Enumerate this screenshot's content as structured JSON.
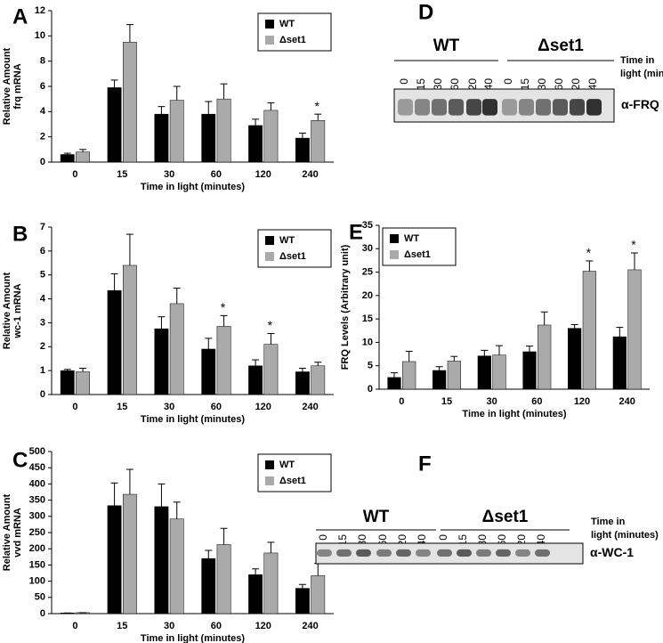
{
  "chart_data": [
    {
      "type": "bar",
      "panel": "A",
      "ylabel": [
        "Relative Amount",
        "frq mRNA"
      ],
      "xlabel": "Time in light (minutes)",
      "categories": [
        "0",
        "15",
        "30",
        "60",
        "120",
        "240"
      ],
      "ylim": [
        0,
        12
      ],
      "yticks": [
        0,
        2,
        4,
        6,
        8,
        10,
        12
      ],
      "legend": "upper right",
      "series": [
        {
          "name": "WT",
          "color": "#000000",
          "values": [
            0.6,
            5.9,
            3.8,
            3.8,
            2.9,
            1.9
          ],
          "errors": [
            0.1,
            0.6,
            0.6,
            1.0,
            0.5,
            0.4
          ]
        },
        {
          "name": "Δset1",
          "color": "#aaaaaa",
          "values": [
            0.8,
            9.5,
            4.9,
            5.0,
            4.1,
            3.3
          ],
          "errors": [
            0.2,
            1.4,
            1.1,
            1.2,
            0.6,
            0.5
          ]
        }
      ],
      "significance": [
        null,
        null,
        null,
        null,
        null,
        "*"
      ]
    },
    {
      "type": "bar",
      "panel": "B",
      "ylabel": [
        "Relative Amount",
        "wc-1 mRNA"
      ],
      "xlabel": "Time in light (minutes)",
      "categories": [
        "0",
        "15",
        "30",
        "60",
        "120",
        "240"
      ],
      "ylim": [
        0,
        7
      ],
      "yticks": [
        0,
        1,
        2,
        3,
        4,
        5,
        6,
        7
      ],
      "legend": "upper right",
      "series": [
        {
          "name": "WT",
          "color": "#000000",
          "values": [
            1.0,
            4.35,
            2.75,
            1.9,
            1.2,
            0.95
          ],
          "errors": [
            0.05,
            0.7,
            0.5,
            0.45,
            0.25,
            0.15
          ]
        },
        {
          "name": "Δset1",
          "color": "#aaaaaa",
          "values": [
            0.95,
            5.4,
            3.8,
            2.85,
            2.1,
            1.2
          ],
          "errors": [
            0.15,
            1.3,
            0.65,
            0.45,
            0.45,
            0.15
          ]
        }
      ],
      "significance": [
        null,
        null,
        null,
        "*",
        "*",
        null
      ]
    },
    {
      "type": "bar",
      "panel": "C",
      "ylabel": [
        "Relative Amount",
        "vvd mRNA"
      ],
      "xlabel": "Time in light (minutes)",
      "categories": [
        "0",
        "15",
        "30",
        "60",
        "120",
        "240"
      ],
      "ylim": [
        0,
        500
      ],
      "yticks": [
        0,
        50,
        100,
        150,
        200,
        250,
        300,
        350,
        400,
        450,
        500
      ],
      "legend": "upper right",
      "series": [
        {
          "name": "WT",
          "color": "#000000",
          "values": [
            2,
            333,
            330,
            170,
            120,
            78
          ],
          "errors": [
            0,
            70,
            70,
            25,
            18,
            12
          ]
        },
        {
          "name": "Δset1",
          "color": "#aaaaaa",
          "values": [
            3,
            368,
            292,
            213,
            187,
            117
          ],
          "errors": [
            0,
            77,
            52,
            50,
            33,
            38
          ]
        }
      ]
    },
    {
      "type": "bar",
      "panel": "E",
      "ylabel": [
        "FRQ Levels (Arbitrary unit)"
      ],
      "xlabel": "Time in light (minutes)",
      "categories": [
        "0",
        "15",
        "30",
        "60",
        "120",
        "240"
      ],
      "ylim": [
        0,
        35
      ],
      "yticks": [
        0,
        5,
        10,
        15,
        20,
        25,
        30,
        35
      ],
      "legend": "upper left",
      "series": [
        {
          "name": "WT",
          "color": "#000000",
          "values": [
            2.5,
            4.0,
            7.1,
            8.0,
            13.0,
            11.2
          ],
          "errors": [
            1.0,
            0.8,
            1.2,
            1.2,
            0.8,
            2.0
          ]
        },
        {
          "name": "Δset1",
          "color": "#aaaaaa",
          "values": [
            5.9,
            6.0,
            7.3,
            13.7,
            25.2,
            25.5
          ],
          "errors": [
            2.2,
            1.0,
            2.0,
            2.8,
            2.2,
            3.6
          ]
        }
      ],
      "significance": [
        null,
        null,
        null,
        null,
        "*",
        "*"
      ]
    }
  ],
  "blots": [
    {
      "panel": "D",
      "groups": [
        "WT",
        "Δset1"
      ],
      "lanes": [
        "0",
        "15",
        "30",
        "60",
        "120",
        "240"
      ],
      "lane_title": [
        "Time in",
        "light (minutes)"
      ],
      "antibody": "α-FRQ"
    },
    {
      "panel": "F",
      "groups": [
        "WT",
        "Δset1"
      ],
      "lanes": [
        "0",
        "15",
        "30",
        "60",
        "120",
        "240"
      ],
      "lane_title": [
        "Time in",
        "light (minutes)"
      ],
      "antibody": "α-WC-1"
    }
  ]
}
